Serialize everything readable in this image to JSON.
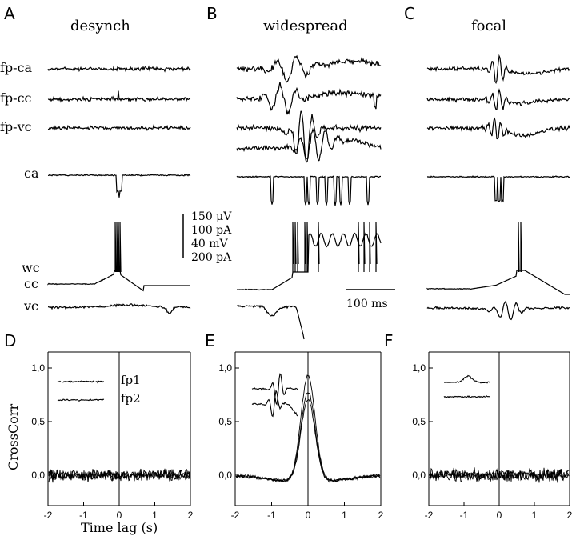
{
  "panels": {
    "A": {
      "letter": "A",
      "title": "desynch"
    },
    "B": {
      "letter": "B",
      "title": "widespread"
    },
    "C": {
      "letter": "C",
      "title": "focal"
    },
    "D": {
      "letter": "D"
    },
    "E": {
      "letter": "E"
    },
    "F": {
      "letter": "F"
    }
  },
  "row_labels": {
    "fp_ca": "fp-ca",
    "fp_cc": "fp-cc",
    "fp_vc": "fp-vc",
    "ca": "ca",
    "wc": "wc",
    "cc": "cc",
    "vc": "vc"
  },
  "scale_bar": {
    "line1": "150 μV",
    "line2": "100 pA",
    "line3": "40 mV",
    "line4": "200 pA",
    "time": "100 ms"
  },
  "xcorr": {
    "ylabel": "CrossCorr",
    "xlabel": "Time lag (s)",
    "xticks": [
      "-2",
      "-1",
      "0",
      "1",
      "2"
    ],
    "yticks": [
      "1,0",
      "0,5",
      "0,0"
    ],
    "inset_labels": {
      "fp1": "fp1",
      "fp2": "fp2"
    }
  },
  "colors": {
    "trace": "#000000",
    "background": "#ffffff"
  }
}
